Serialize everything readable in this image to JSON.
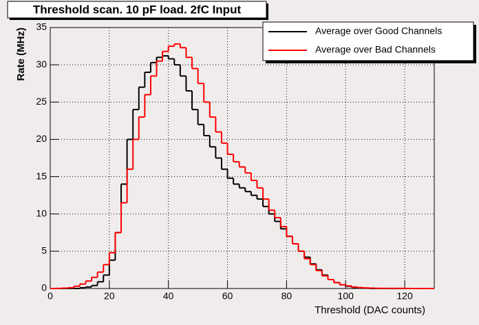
{
  "chart_data": {
    "type": "histogram",
    "title": "Threshold scan. 10 pF load. 2fC Input",
    "x_label": "Threshold (DAC counts)",
    "y_label": "Rate (MHz)",
    "bins": [
      0,
      2,
      4,
      6,
      8,
      10,
      12,
      14,
      16,
      18,
      20,
      22,
      24,
      26,
      28,
      30,
      32,
      34,
      36,
      38,
      40,
      42,
      44,
      46,
      48,
      50,
      52,
      54,
      56,
      58,
      60,
      62,
      64,
      66,
      68,
      70,
      72,
      74,
      76,
      78,
      80,
      82,
      84,
      86,
      88,
      90,
      92,
      94,
      96,
      98,
      100,
      102,
      104,
      106,
      108,
      110,
      112,
      114,
      116,
      118,
      120,
      122,
      124,
      126,
      128,
      130
    ],
    "series": [
      {
        "name": "Average over Good Channels",
        "color": "#000000",
        "values": [
          0,
          0,
          0,
          0,
          0,
          0.1,
          0.2,
          0.4,
          0.9,
          1.8,
          3.8,
          7.5,
          14,
          20,
          24,
          27,
          29,
          30.3,
          31,
          31.2,
          30.8,
          30,
          28.5,
          26.5,
          24,
          22,
          20.5,
          19,
          17.5,
          16,
          14.8,
          14,
          13.5,
          13,
          12.5,
          12,
          11,
          10,
          9,
          8,
          7,
          6,
          5,
          4.2,
          3.3,
          2.5,
          1.8,
          1.2,
          0.8,
          0.5,
          0.3,
          0.15,
          0.08,
          0.04,
          0,
          0,
          0,
          0,
          0,
          0,
          0,
          0,
          0,
          0,
          0
        ]
      },
      {
        "name": "Average over Bad Channels",
        "color": "#ff0000",
        "values": [
          0,
          0.02,
          0.05,
          0.1,
          0.3,
          0.6,
          1,
          1.5,
          2.2,
          3.2,
          4.8,
          7.5,
          11.5,
          16,
          20,
          23,
          26,
          28.5,
          30.5,
          31.8,
          32.5,
          32.8,
          32.3,
          31,
          29.5,
          27.5,
          25,
          23,
          21,
          19.5,
          18,
          17,
          16.3,
          15.5,
          14.5,
          13.5,
          12,
          10.5,
          9.5,
          8.3,
          7,
          6,
          5,
          4,
          3.2,
          2.4,
          1.7,
          1.2,
          0.8,
          0.5,
          0.35,
          0.2,
          0.12,
          0.08,
          0.05,
          0.03,
          0.02,
          0.02,
          0.02,
          0.02,
          0.01,
          0,
          0,
          0,
          0
        ]
      }
    ],
    "xlim": [
      0,
      130
    ],
    "xticks": [
      0,
      20,
      40,
      60,
      80,
      100,
      120
    ],
    "ylim": [
      0,
      35
    ],
    "yticks": [
      0,
      5,
      10,
      15,
      20,
      25,
      30,
      35
    ],
    "grid": true,
    "legend": "top-right"
  }
}
